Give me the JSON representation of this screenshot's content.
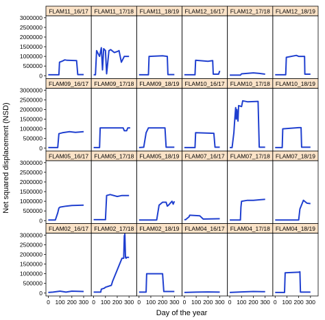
{
  "chart_data": {
    "type": "line",
    "xlabel": "Day of the year",
    "ylabel": "Net squared displacement (NSD)",
    "xlim": [
      -20,
      365
    ],
    "ylim": [
      -150000,
      3100000
    ],
    "x_ticks": [
      0,
      100,
      200,
      300
    ],
    "y_ticks": [
      0,
      500000,
      1000000,
      1500000,
      2000000,
      2500000,
      3000000
    ],
    "grid": false,
    "legend": "none",
    "line_color": "#1f3fcf",
    "strip_color": "#fbe3c8",
    "panels": [
      {
        "name": "FLAM11_16/17",
        "x": [
          0,
          90,
          95,
          120,
          140,
          160,
          240,
          250,
          300
        ],
        "y": [
          50000,
          50000,
          700000,
          760000,
          820000,
          800000,
          780000,
          60000,
          60000
        ]
      },
      {
        "name": "FLAM11_17/18",
        "x": [
          0,
          15,
          25,
          50,
          65,
          75,
          85,
          100,
          110,
          130,
          145,
          175,
          200,
          215,
          235,
          260,
          280,
          300
        ],
        "y": [
          50000,
          50000,
          1300000,
          1000000,
          1450000,
          300000,
          1400000,
          1300000,
          100000,
          1300000,
          1350000,
          1200000,
          1250000,
          1300000,
          700000,
          1000000,
          1000000,
          1000000
        ]
      },
      {
        "name": "FLAM11_18/19",
        "x": [
          0,
          80,
          85,
          200,
          240,
          245,
          300
        ],
        "y": [
          50000,
          50000,
          1000000,
          1030000,
          1000000,
          60000,
          60000
        ]
      },
      {
        "name": "FLAM12_16/17",
        "x": [
          0,
          90,
          95,
          200,
          240,
          245,
          290,
          300
        ],
        "y": [
          50000,
          50000,
          800000,
          750000,
          780000,
          80000,
          80000,
          250000
        ]
      },
      {
        "name": "FLAM12_17/18",
        "x": [
          0,
          90,
          100,
          200,
          250,
          300
        ],
        "y": [
          30000,
          30000,
          100000,
          150000,
          120000,
          80000
        ]
      },
      {
        "name": "FLAM12_18/19",
        "x": [
          0,
          90,
          95,
          180,
          200,
          250,
          252,
          300
        ],
        "y": [
          50000,
          50000,
          950000,
          1050000,
          1000000,
          1000000,
          80000,
          80000
        ]
      },
      {
        "name": "FLAM09_16/17",
        "x": [
          0,
          80,
          90,
          120,
          180,
          230,
          300
        ],
        "y": [
          30000,
          30000,
          750000,
          800000,
          850000,
          820000,
          850000
        ]
      },
      {
        "name": "FLAM09_17/18",
        "x": [
          0,
          50,
          55,
          250,
          260,
          280,
          290,
          310
        ],
        "y": [
          30000,
          30000,
          1050000,
          1050000,
          900000,
          900000,
          1050000,
          1050000
        ]
      },
      {
        "name": "FLAM09_18/19",
        "x": [
          0,
          40,
          60,
          80,
          220,
          230,
          300
        ],
        "y": [
          30000,
          50000,
          800000,
          1050000,
          1050000,
          50000,
          50000
        ]
      },
      {
        "name": "FLAM10_16/17",
        "x": [
          0,
          90,
          95,
          250,
          260,
          300
        ],
        "y": [
          30000,
          30000,
          800000,
          770000,
          50000,
          50000
        ]
      },
      {
        "name": "FLAM10_17/18",
        "x": [
          0,
          20,
          35,
          40,
          50,
          55,
          60,
          70,
          75,
          100,
          110,
          150,
          240,
          250,
          300
        ],
        "y": [
          30000,
          30000,
          800000,
          1300000,
          2100000,
          1500000,
          2000000,
          1400000,
          2200000,
          2150000,
          2450000,
          2400000,
          2420000,
          50000,
          50000
        ]
      },
      {
        "name": "FLAM10_18/19",
        "x": [
          0,
          60,
          65,
          200,
          220,
          225,
          300
        ],
        "y": [
          30000,
          30000,
          1000000,
          1060000,
          1060000,
          50000,
          50000
        ]
      },
      {
        "name": "FLAM05_16/17",
        "x": [
          0,
          60,
          80,
          90,
          100,
          150,
          200,
          300
        ],
        "y": [
          30000,
          30000,
          400000,
          650000,
          700000,
          750000,
          780000,
          800000
        ]
      },
      {
        "name": "FLAM05_17/18",
        "x": [
          0,
          100,
          110,
          140,
          200,
          240,
          260,
          300
        ],
        "y": [
          50000,
          50000,
          1300000,
          1350000,
          1250000,
          1300000,
          1300000,
          1300000
        ]
      },
      {
        "name": "FLAM05_18/19",
        "x": [
          0,
          150,
          170,
          200,
          230,
          240,
          250,
          280,
          290,
          300
        ],
        "y": [
          30000,
          30000,
          800000,
          950000,
          950000,
          750000,
          800000,
          1000000,
          850000,
          1000000
        ]
      },
      {
        "name": "FLAM07_16/17",
        "x": [
          0,
          10,
          40,
          45,
          130,
          160,
          300
        ],
        "y": [
          50000,
          50000,
          200000,
          280000,
          250000,
          80000,
          100000
        ]
      },
      {
        "name": "FLAM07_17/18",
        "x": [
          0,
          90,
          95,
          100,
          150,
          200,
          300
        ],
        "y": [
          30000,
          30000,
          700000,
          1000000,
          1050000,
          1050000,
          1100000
        ]
      },
      {
        "name": "FLAM07_18/19",
        "x": [
          0,
          200,
          210,
          240,
          270,
          300
        ],
        "y": [
          30000,
          30000,
          600000,
          1050000,
          900000,
          880000
        ]
      },
      {
        "name": "FLAM02_16/17",
        "x": [
          0,
          40,
          100,
          150,
          200,
          300
        ],
        "y": [
          30000,
          50000,
          100000,
          50000,
          100000,
          80000
        ]
      },
      {
        "name": "FLAM02_17/18",
        "x": [
          0,
          60,
          65,
          90,
          100,
          150,
          160,
          200,
          240,
          255,
          260,
          265,
          270,
          275,
          280,
          300
        ],
        "y": [
          50000,
          50000,
          200000,
          250000,
          300000,
          400000,
          600000,
          1200000,
          1800000,
          1800000,
          2950000,
          3050000,
          1850000,
          1800000,
          1850000,
          1850000
        ]
      },
      {
        "name": "FLAM02_18/19",
        "x": [
          0,
          60,
          65,
          200,
          210,
          300
        ],
        "y": [
          50000,
          50000,
          1000000,
          1000000,
          80000,
          80000
        ]
      },
      {
        "name": "FLAM04_16/17",
        "x": [
          0,
          100,
          200,
          300
        ],
        "y": [
          30000,
          50000,
          60000,
          50000
        ]
      },
      {
        "name": "FLAM04_17/18",
        "x": [
          0,
          100,
          200,
          300
        ],
        "y": [
          30000,
          60000,
          80000,
          70000
        ]
      },
      {
        "name": "FLAM04_18/19",
        "x": [
          0,
          80,
          85,
          200,
          210,
          215,
          300
        ],
        "y": [
          30000,
          30000,
          1050000,
          1080000,
          1100000,
          50000,
          50000
        ]
      }
    ]
  }
}
